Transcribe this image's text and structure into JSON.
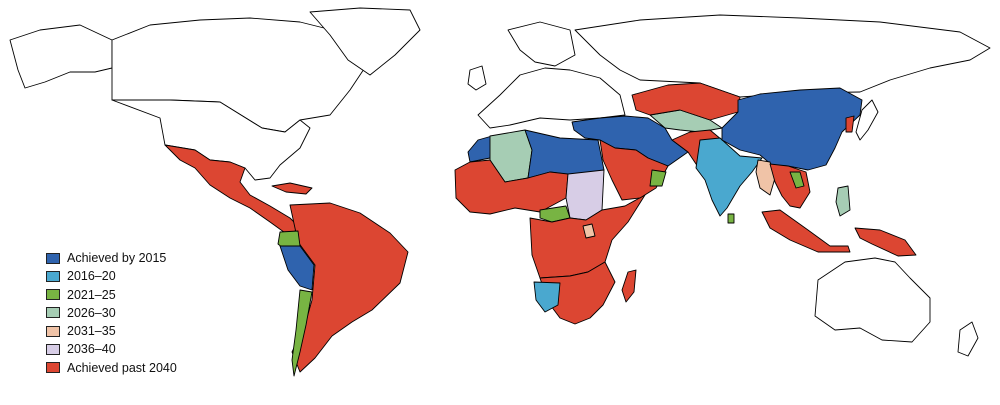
{
  "colors": {
    "by_2015": "#2f63ae",
    "2016_20": "#4aa8cf",
    "2021_25": "#78b443",
    "2026_30": "#a6cdb4",
    "2031_35": "#f0c3a7",
    "2036_40": "#d7cde6",
    "past_2040": "#dc4632",
    "no_data": "#ffffff"
  },
  "legend": [
    {
      "label": "Achieved by 2015",
      "color_key": "by_2015"
    },
    {
      "label": "2016–20",
      "color_key": "2016_20"
    },
    {
      "label": "2021–25",
      "color_key": "2021_25"
    },
    {
      "label": "2026–30",
      "color_key": "2026_30"
    },
    {
      "label": "2031–35",
      "color_key": "2031_35"
    },
    {
      "label": "2036–40",
      "color_key": "2036_40"
    },
    {
      "label": "Achieved past 2040",
      "color_key": "past_2040"
    }
  ],
  "regions": [
    {
      "name": "canada",
      "category": "no_data"
    },
    {
      "name": "greenland",
      "category": "no_data"
    },
    {
      "name": "usa",
      "category": "no_data"
    },
    {
      "name": "alaska",
      "category": "no_data"
    },
    {
      "name": "mexico-central-america",
      "category": "past_2040"
    },
    {
      "name": "caribbean",
      "category": "past_2040"
    },
    {
      "name": "south-america",
      "category": "past_2040"
    },
    {
      "name": "colombia-ecuador",
      "category": "2021_25"
    },
    {
      "name": "peru",
      "category": "by_2015"
    },
    {
      "name": "chile",
      "category": "2021_25"
    },
    {
      "name": "europe",
      "category": "no_data"
    },
    {
      "name": "russia",
      "category": "no_data"
    },
    {
      "name": "north-africa-west",
      "category": "by_2015"
    },
    {
      "name": "algeria",
      "category": "2026_30"
    },
    {
      "name": "libya-egypt",
      "category": "by_2015"
    },
    {
      "name": "west-africa",
      "category": "past_2040"
    },
    {
      "name": "sudan",
      "category": "2036_40"
    },
    {
      "name": "central-africa",
      "category": "past_2040"
    },
    {
      "name": "central-african-band",
      "category": "2021_25"
    },
    {
      "name": "kenya",
      "category": "2031_35"
    },
    {
      "name": "southern-africa",
      "category": "past_2040"
    },
    {
      "name": "namibia",
      "category": "2016_20"
    },
    {
      "name": "madagascar",
      "category": "past_2040"
    },
    {
      "name": "turkey-iran",
      "category": "by_2015"
    },
    {
      "name": "caucasus-central-asia",
      "category": "2026_30"
    },
    {
      "name": "arabia",
      "category": "past_2040"
    },
    {
      "name": "oman",
      "category": "2021_25"
    },
    {
      "name": "kazakhstan",
      "category": "past_2040"
    },
    {
      "name": "afghanistan-pakistan",
      "category": "past_2040"
    },
    {
      "name": "india",
      "category": "2016_20"
    },
    {
      "name": "sri-lanka",
      "category": "2021_25"
    },
    {
      "name": "china-mongolia",
      "category": "by_2015"
    },
    {
      "name": "myanmar",
      "category": "2031_35"
    },
    {
      "name": "southeast-asia",
      "category": "past_2040"
    },
    {
      "name": "vietnam",
      "category": "2021_25"
    },
    {
      "name": "korea",
      "category": "past_2040"
    },
    {
      "name": "japan",
      "category": "no_data"
    },
    {
      "name": "philippines",
      "category": "2026_30"
    },
    {
      "name": "indonesia",
      "category": "past_2040"
    },
    {
      "name": "new-guinea",
      "category": "past_2040"
    },
    {
      "name": "australia",
      "category": "no_data"
    },
    {
      "name": "new-zealand",
      "category": "no_data"
    },
    {
      "name": "uk",
      "category": "no_data"
    },
    {
      "name": "scandinavia",
      "category": "no_data"
    }
  ]
}
